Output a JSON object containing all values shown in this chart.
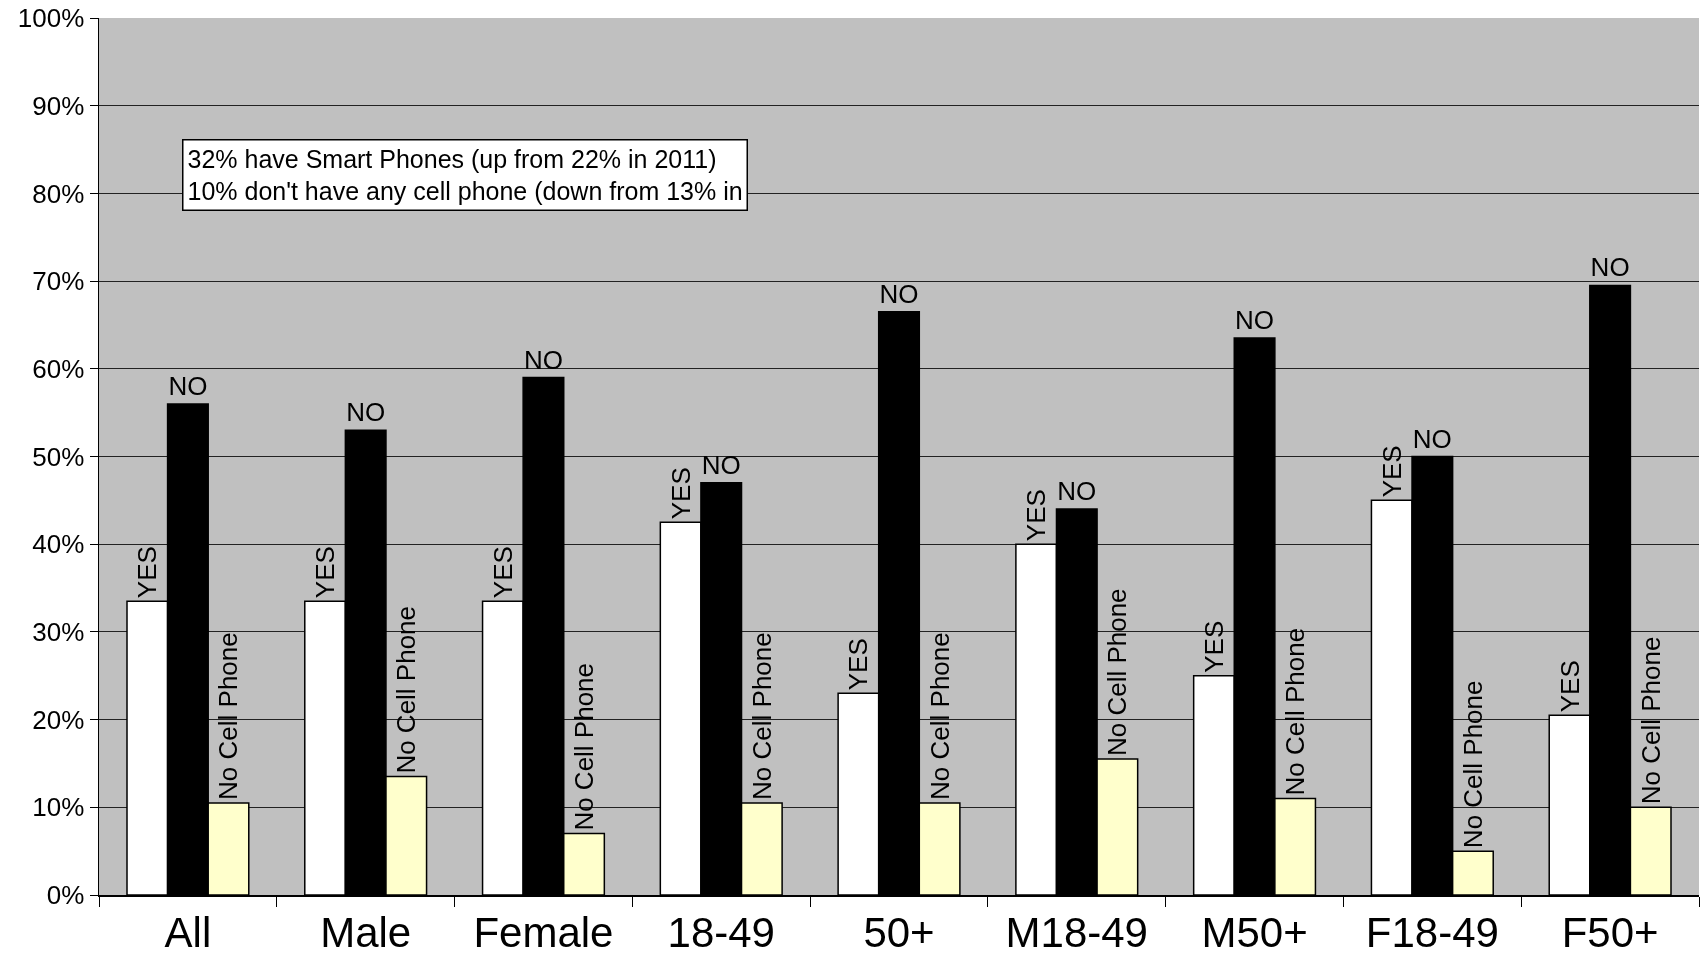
{
  "chart_data": {
    "type": "bar",
    "categories": [
      "All",
      "Male",
      "Female",
      "18-49",
      "50+",
      "M18-49",
      "M50+",
      "F18-49",
      "F50+"
    ],
    "series": [
      {
        "name": "YES",
        "color": "#ffffff",
        "values": [
          33.5,
          33.5,
          33.5,
          42.5,
          23,
          40,
          25,
          45,
          20.5
        ]
      },
      {
        "name": "NO",
        "color": "#000000",
        "values": [
          56,
          53,
          59,
          47,
          66.5,
          44,
          63.5,
          50,
          69.5
        ]
      },
      {
        "name": "No Cell Phone",
        "color": "#ffffcc",
        "values": [
          10.5,
          13.5,
          7,
          10.5,
          10.5,
          15.5,
          11,
          5,
          10
        ]
      }
    ],
    "ylim": [
      0,
      100
    ],
    "yticks": [
      {
        "value": 0,
        "label": "0%"
      },
      {
        "value": 10,
        "label": "10%"
      },
      {
        "value": 20,
        "label": "20%"
      },
      {
        "value": 30,
        "label": "30%"
      },
      {
        "value": 40,
        "label": "40%"
      },
      {
        "value": 50,
        "label": "50%"
      },
      {
        "value": 60,
        "label": "60%"
      },
      {
        "value": 70,
        "label": "70%"
      },
      {
        "value": 80,
        "label": "80%"
      },
      {
        "value": 90,
        "label": "90%"
      },
      {
        "value": 100,
        "label": "100%"
      }
    ],
    "grid": "y",
    "annotations": [
      "32% have Smart Phones (up from 22% in 2011)\n10% don't have any cell phone (down from 13% in"
    ]
  }
}
